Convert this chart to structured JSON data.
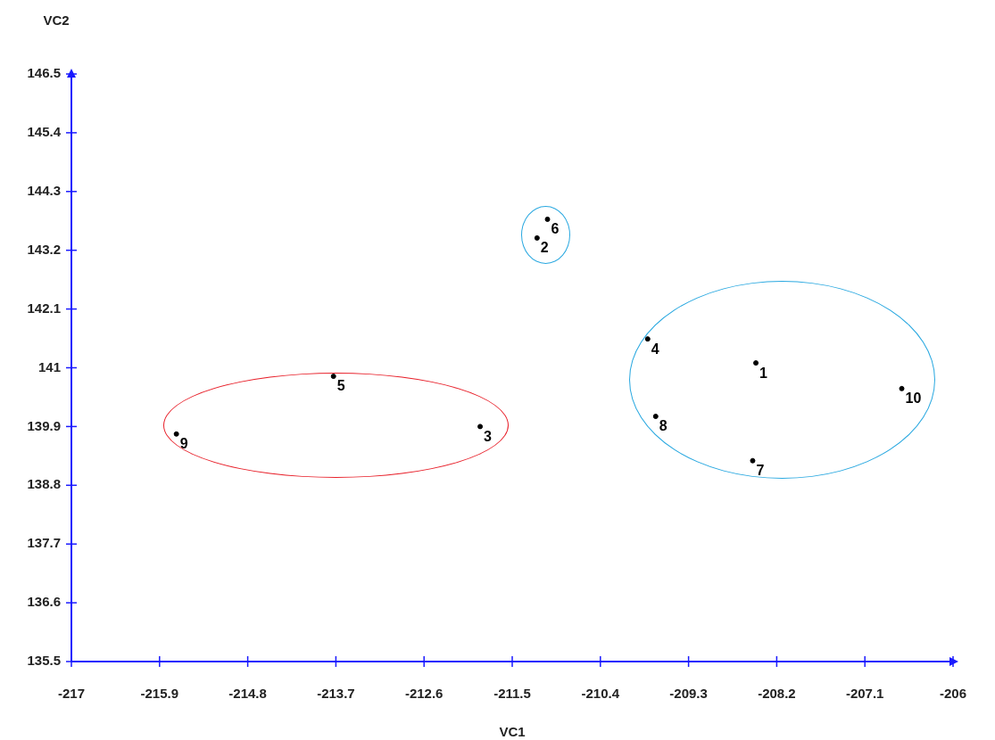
{
  "chart_data": {
    "type": "scatter",
    "xlabel": "VC1",
    "ylabel": "VC2",
    "marker": "circle",
    "grid": false,
    "legend": false,
    "series": [
      {
        "color": "#000000",
        "x": [
          -208.46,
          -211.19,
          -211.9,
          -209.81,
          -213.73,
          -211.06,
          -208.5,
          -209.71,
          -215.69,
          -206.64
        ],
        "values": [
          141.09,
          143.43,
          139.9,
          141.54,
          140.84,
          143.78,
          139.26,
          140.09,
          139.76,
          140.61
        ]
      }
    ],
    "annotations": [
      {
        "text": "1",
        "x": -208.46,
        "y": 141.09
      },
      {
        "text": "2",
        "x": -211.19,
        "y": 143.43
      },
      {
        "text": "3",
        "x": -211.9,
        "y": 139.9
      },
      {
        "text": "4",
        "x": -209.81,
        "y": 141.54
      },
      {
        "text": "5",
        "x": -213.73,
        "y": 140.84
      },
      {
        "text": "6",
        "x": -211.06,
        "y": 143.78
      },
      {
        "text": "7",
        "x": -208.5,
        "y": 139.26
      },
      {
        "text": "8",
        "x": -209.71,
        "y": 140.09
      },
      {
        "text": "9",
        "x": -215.69,
        "y": 139.76
      },
      {
        "text": "10",
        "x": -206.64,
        "y": 140.61
      }
    ],
    "xlim": [
      -217,
      -206
    ],
    "xticks": [
      -217,
      -215.9,
      -214.8,
      -213.7,
      -212.6,
      -211.5,
      -210.4,
      -209.3,
      -208.2,
      -207.1,
      -206
    ],
    "ylim": [
      135.5,
      146.5
    ],
    "yticks": [
      135.5,
      136.6,
      137.7,
      138.8,
      139.9,
      141,
      142.1,
      143.2,
      144.3,
      145.4,
      146.5
    ]
  }
}
